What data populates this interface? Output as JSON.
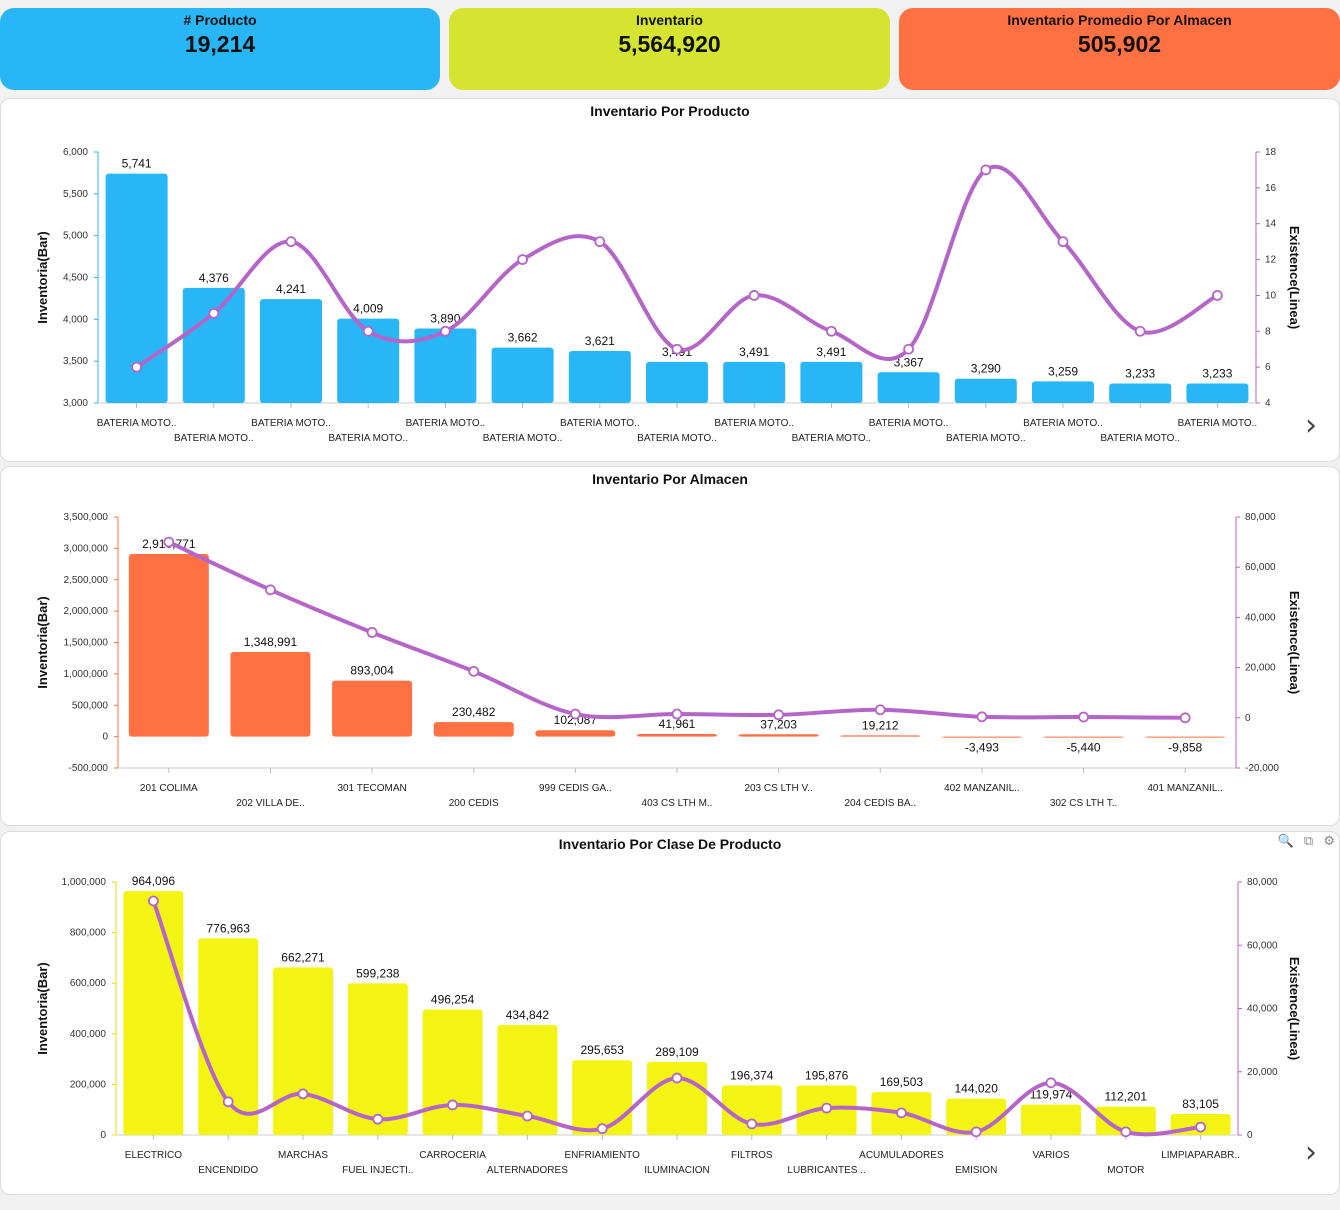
{
  "kpis": [
    {
      "label": "# Producto",
      "value": "19,214",
      "color": "#29b6f6"
    },
    {
      "label": "Inventario",
      "value": "5,564,920",
      "color": "#d4e430"
    },
    {
      "label": "Inventario Promedio Por Almacen",
      "value": "505,902",
      "color": "#ff7043"
    }
  ],
  "toolbar_icons": [
    "zoom-icon",
    "copy-icon",
    "gear-icon"
  ],
  "chart_data": [
    {
      "type": "bar",
      "title": "Inventario Por Producto",
      "ylabel": "Inventoria(Bar)",
      "y2label": "Existence(Linea)",
      "ylim": [
        3000,
        6000
      ],
      "yticks": [
        "3,000",
        "3,500",
        "4,000",
        "4,500",
        "5,000",
        "5,500",
        "6,000"
      ],
      "y2lim": [
        4,
        18
      ],
      "y2ticks": [
        "4",
        "6",
        "8",
        "10",
        "12",
        "14",
        "16",
        "18"
      ],
      "bar_color": "#29b6f6",
      "line_color": "#b565c8",
      "axis_color": "#29b6f6",
      "categories": [
        "BATERIA MOTO..",
        "BATERIA MOTO..",
        "BATERIA MOTO..",
        "BATERIA MOTO..",
        "BATERIA MOTO..",
        "BATERIA MOTO..",
        "BATERIA MOTO..",
        "BATERIA MOTO..",
        "BATERIA MOTO..",
        "BATERIA MOTO..",
        "BATERIA MOTO..",
        "BATERIA MOTO..",
        "BATERIA MOTO..",
        "BATERIA MOTO..",
        "BATERIA MOTO.."
      ],
      "values": [
        5741,
        4376,
        4241,
        4009,
        3890,
        3662,
        3621,
        3491,
        3491,
        3491,
        3367,
        3290,
        3259,
        3233,
        3233
      ],
      "labels": [
        "5,741",
        "4,376",
        "4,241",
        "4,009",
        "3,890",
        "3,662",
        "3,621",
        "3,491",
        "3,491",
        "3,491",
        "3,367",
        "3,290",
        "3,259",
        "3,233",
        "3,233"
      ],
      "line_values": [
        6,
        9,
        13,
        8,
        8,
        12,
        13,
        7,
        10,
        8,
        7,
        17,
        13,
        8,
        10
      ]
    },
    {
      "type": "bar",
      "title": "Inventario Por Almacen",
      "ylabel": "Inventoria(Bar)",
      "y2label": "Existence(Linea)",
      "ylim": [
        -500000,
        3500000
      ],
      "yticks": [
        "-500,000",
        "0",
        "500,000",
        "1,000,000",
        "1,500,000",
        "2,000,000",
        "2,500,000",
        "3,000,000",
        "3,500,000"
      ],
      "y2lim": [
        -20000,
        80000
      ],
      "y2ticks": [
        "-20,000",
        "0",
        "20,000",
        "40,000",
        "60,000",
        "80,000"
      ],
      "bar_color": "#ff7043",
      "line_color": "#b565c8",
      "axis_color": "#ff7043",
      "categories": [
        "201 COLIMA",
        "202 VILLA DE..",
        "301 TECOMAN",
        "200 CEDIS",
        "999 CEDIS GA..",
        "403 CS LTH M..",
        "203 CS LTH V..",
        "204 CEDIS BA..",
        "402 MANZANIL..",
        "302 CS LTH T..",
        "401 MANZANIL.."
      ],
      "values": [
        2910771,
        1348991,
        893004,
        230482,
        102087,
        41961,
        37203,
        19212,
        -3493,
        -5440,
        -9858
      ],
      "labels": [
        "2,910,771",
        "1,348,991",
        "893,004",
        "230,482",
        "102,087",
        "41,961",
        "37,203",
        "19,212",
        "-3,493",
        "-5,440",
        "-9,858"
      ],
      "line_values": [
        70000,
        51000,
        34000,
        18500,
        1500,
        1500,
        1200,
        3200,
        400,
        300,
        0
      ]
    },
    {
      "type": "bar",
      "title": "Inventario Por Clase De Producto",
      "ylabel": "Inventoria(Bar)",
      "y2label": "Existence(Linea)",
      "ylim": [
        0,
        1000000
      ],
      "yticks": [
        "0",
        "200,000",
        "400,000",
        "600,000",
        "800,000",
        "1,000,000"
      ],
      "y2lim": [
        0,
        80000
      ],
      "y2ticks": [
        "0",
        "20,000",
        "40,000",
        "60,000",
        "80,000"
      ],
      "bar_color": "#f4f414",
      "line_color": "#b565c8",
      "axis_color": "#e0e000",
      "categories": [
        "ELECTRICO",
        "ENCENDIDO",
        "MARCHAS",
        "FUEL INJECTI..",
        "CARROCERIA",
        "ALTERNADORES",
        "ENFRIAMIENTO",
        "ILUMINACION",
        "FILTROS",
        "LUBRICANTES ..",
        "ACUMULADORES",
        "EMISION",
        "VARIOS",
        "MOTOR",
        "LIMPIAPARABR.."
      ],
      "values": [
        964096,
        776963,
        662271,
        599238,
        496254,
        434842,
        295653,
        289109,
        196374,
        195876,
        169503,
        144020,
        119974,
        112201,
        83105
      ],
      "labels": [
        "964,096",
        "776,963",
        "662,271",
        "599,238",
        "496,254",
        "434,842",
        "295,653",
        "289,109",
        "196,374",
        "195,876",
        "169,503",
        "144,020",
        "119,974",
        "112,201",
        "83,105"
      ],
      "line_values": [
        74000,
        10500,
        13000,
        5000,
        9500,
        6000,
        2000,
        18000,
        3500,
        8500,
        7000,
        1000,
        16500,
        1000,
        2500
      ]
    }
  ]
}
